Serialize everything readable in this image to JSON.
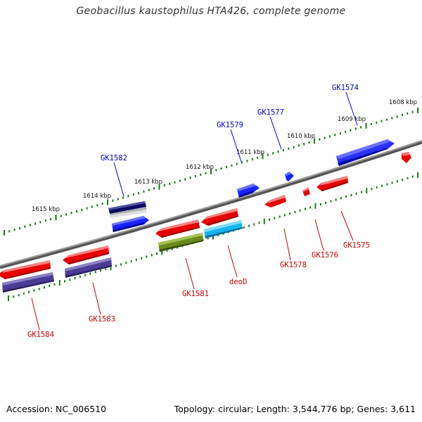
{
  "title": "Geobacillus kaustophilus HTA426, complete genome",
  "footer": {
    "accession": "Accession: NC_006510",
    "summary": "Topology: circular; Length: 3,544,776 bp; Genes: 3,611"
  },
  "scale_labels": [
    "1608 kbp",
    "1609 kbp",
    "1610 kbp",
    "1611 kbp",
    "1612 kbp",
    "1613 kbp",
    "1614 kbp",
    "1615 kbp"
  ],
  "colors": {
    "backbone": "#808080",
    "tick": "#1e7a1e",
    "label_forward": "#0000cc",
    "label_reverse": "#cc0000",
    "red": "#ff0000",
    "blue": "#0a14f0",
    "navy": "#0a0a64",
    "olive": "#6b8a1e",
    "cyan": "#14b4f0",
    "slate": "#4b3c96",
    "gray": "#b4b4b4"
  },
  "forward_genes": [
    "GK1574",
    "GK1577",
    "GK1579",
    "GK1582"
  ],
  "reverse_genes": [
    "GK1575",
    "GK1576",
    "GK1578",
    "deoD",
    "GK1581",
    "GK1583",
    "GK1584"
  ]
}
